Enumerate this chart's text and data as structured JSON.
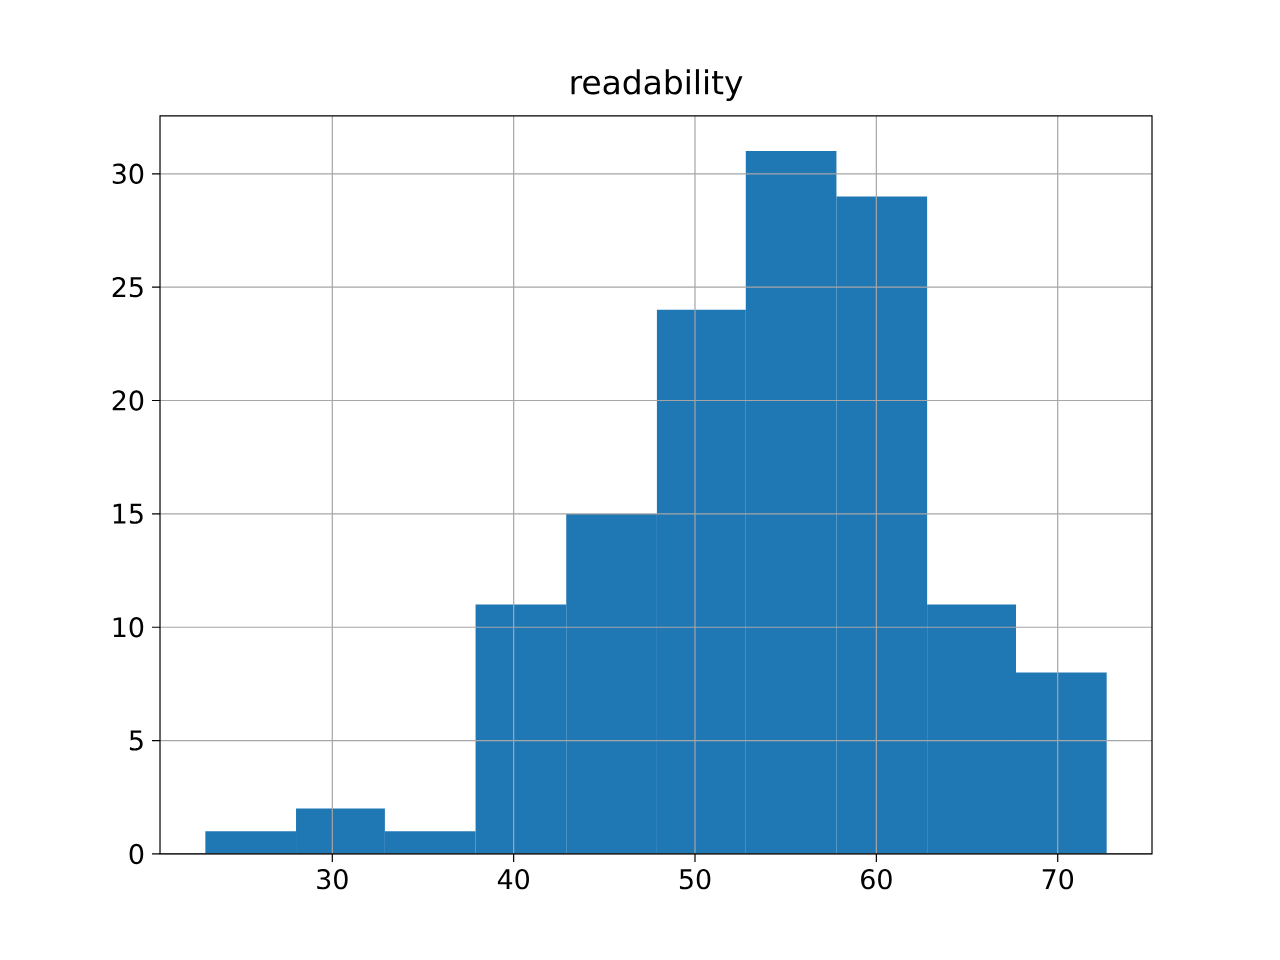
{
  "chart_data": {
    "type": "histogram",
    "title": "readability",
    "bins": [
      23,
      28,
      32.9,
      37.9,
      42.9,
      47.9,
      52.8,
      57.8,
      62.8,
      67.7,
      72.7
    ],
    "values": [
      1,
      2,
      1,
      11,
      15,
      24,
      31,
      29,
      11,
      8
    ],
    "color": "#1f77b4",
    "xlim": [
      20.5,
      75.2
    ],
    "ylim": [
      0,
      32.55
    ],
    "xticks": [
      30,
      40,
      50,
      60,
      70
    ],
    "yticks": [
      0,
      5,
      10,
      15,
      20,
      25,
      30
    ],
    "grid": true
  }
}
